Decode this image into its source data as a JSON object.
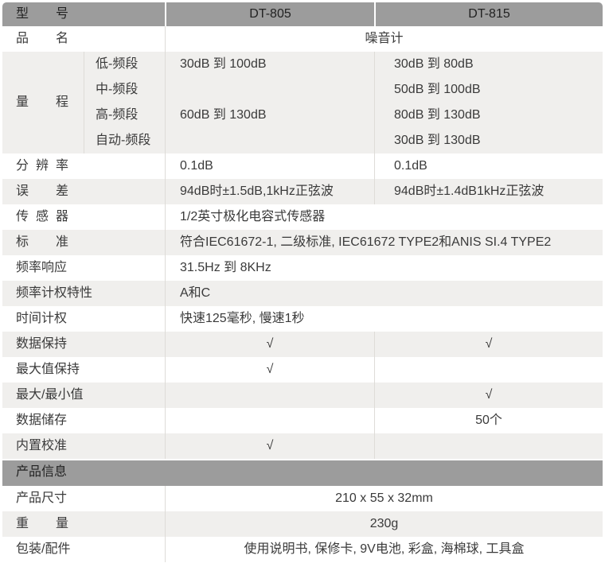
{
  "colors": {
    "header_bg": "#9c9c9c",
    "section_bg": "#9c9c9c",
    "row_alt_bg": "#f0efed",
    "divider": "#dedcd8",
    "text": "#3a3a3a"
  },
  "header": {
    "label": "型号",
    "model1": "DT-805",
    "model2": "DT-815"
  },
  "rows": [
    {
      "type": "span",
      "align": "center",
      "label": "品名",
      "value": "噪音计"
    },
    {
      "type": "range",
      "label": "量程",
      "subrows": [
        {
          "band": "低-频段",
          "v1": "30dB 到 100dB",
          "v2": "30dB 到 80dB"
        },
        {
          "band": "中-频段",
          "v1": "",
          "v2": "50dB 到 100dB"
        },
        {
          "band": "高-频段",
          "v1": "60dB 到 130dB",
          "v2": "80dB 到 130dB"
        },
        {
          "band": "自动-频段",
          "v1": "",
          "v2": "30dB 到 130dB"
        }
      ]
    },
    {
      "type": "two",
      "align": "left",
      "label": "分辨率",
      "v1": "0.1dB",
      "v2": "0.1dB"
    },
    {
      "type": "two",
      "align": "left",
      "label": "误差",
      "v1": "94dB时±1.5dB,1kHz正弦波",
      "v2": "94dB时±1.4dB1kHz正弦波"
    },
    {
      "type": "span",
      "align": "left",
      "label": "传感器",
      "value": "1/2英寸极化电容式传感器"
    },
    {
      "type": "span",
      "align": "left",
      "label": "标准",
      "value": "符合IEC61672-1, 二级标准, IEC61672 TYPE2和ANIS SI.4 TYPE2"
    },
    {
      "type": "span",
      "align": "left",
      "label": "频率响应",
      "value": "31.5Hz 到 8KHz"
    },
    {
      "type": "span",
      "align": "left",
      "label": "频率计权特性",
      "value": "A和C"
    },
    {
      "type": "span",
      "align": "left",
      "label": "时间计权",
      "value": "快速125毫秒, 慢速1秒"
    },
    {
      "type": "two",
      "align": "center",
      "label": "数据保持",
      "v1": "√",
      "v2": "√"
    },
    {
      "type": "two",
      "align": "center",
      "label": "最大值保持",
      "v1": "√",
      "v2": ""
    },
    {
      "type": "two",
      "align": "center",
      "label": "最大/最小值",
      "v1": "",
      "v2": "√"
    },
    {
      "type": "two",
      "align": "center",
      "label": "数据储存",
      "v1": "",
      "v2": "50个"
    },
    {
      "type": "two",
      "align": "center",
      "label": "内置校准",
      "v1": "√",
      "v2": ""
    },
    {
      "type": "section",
      "label": "产品信息"
    },
    {
      "type": "span",
      "align": "center",
      "label": "产品尺寸",
      "value": "210 x 55 x 32mm"
    },
    {
      "type": "span",
      "align": "center",
      "label": "重量",
      "value": "230g"
    },
    {
      "type": "span",
      "align": "center",
      "label": "包装/配件",
      "value": "使用说明书, 保修卡, 9V电池, 彩盒, 海棉球, 工具盒"
    }
  ]
}
